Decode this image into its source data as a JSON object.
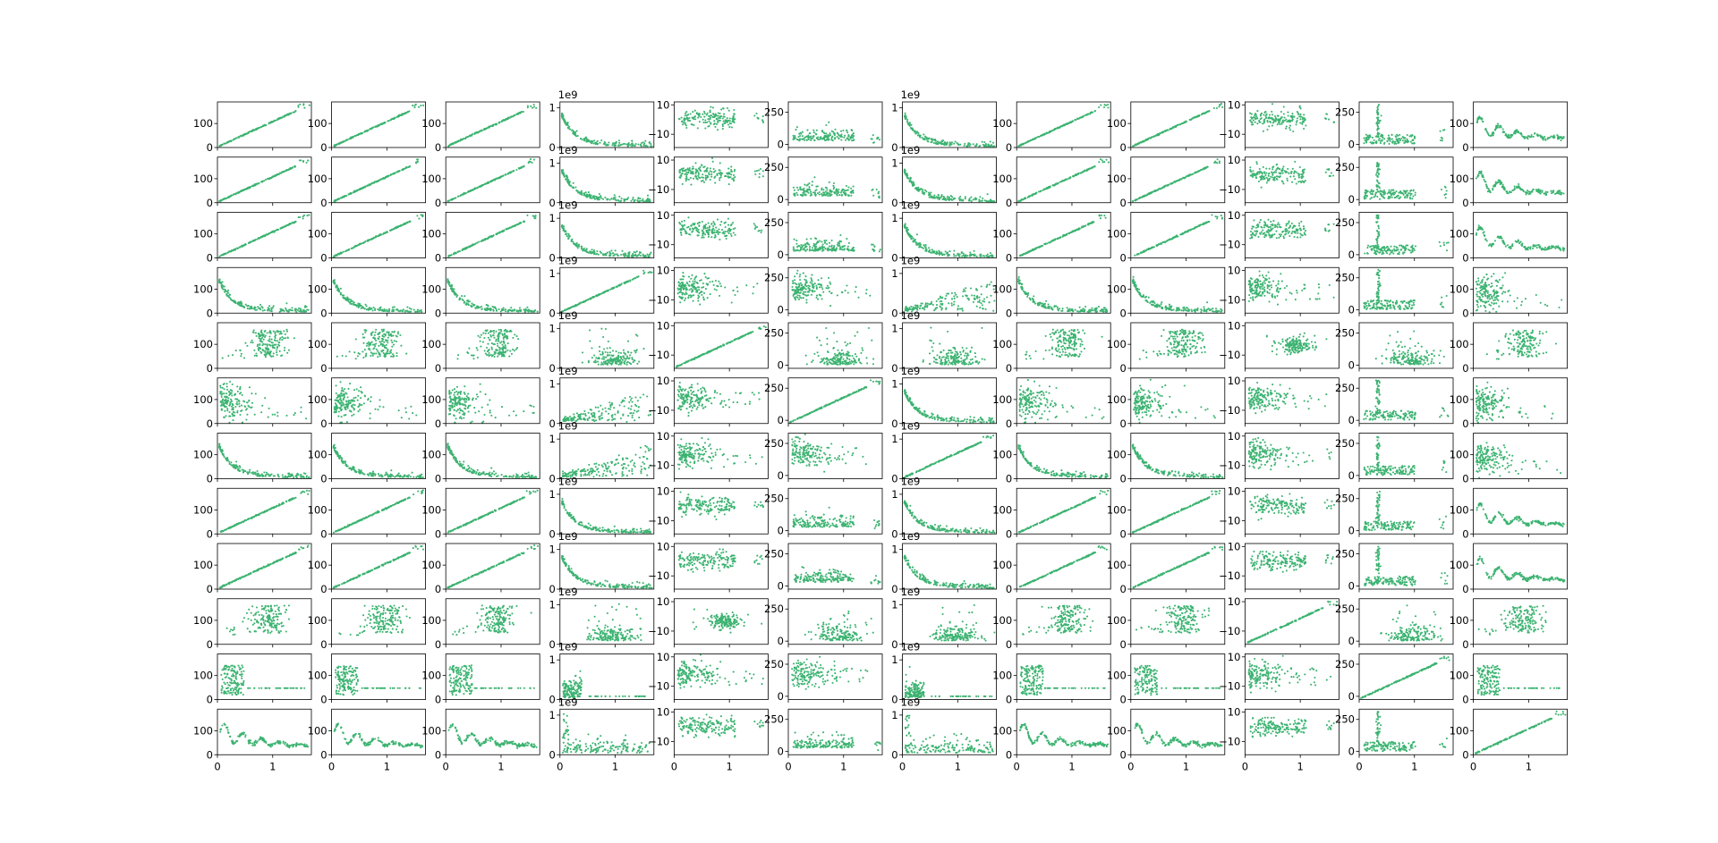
{
  "figure": {
    "kind": "scatter-matrix",
    "rows": 12,
    "cols": 12,
    "marker_color": "#3cb371",
    "tick_color": "#000000"
  },
  "chart_data": {
    "type": "scatter",
    "title": "",
    "xlabel": "",
    "ylabel": "",
    "grid": false,
    "legend": "none",
    "x_axis": {
      "range": [
        0,
        1.7
      ],
      "tick_labels": [
        "0",
        "1"
      ]
    },
    "y_axes_by_column": [
      {
        "range": [
          0,
          190
        ],
        "tick_labels": [
          "0",
          "100"
        ],
        "offset_text": ""
      },
      {
        "range": [
          0,
          190
        ],
        "tick_labels": [
          "0",
          "100"
        ],
        "offset_text": ""
      },
      {
        "range": [
          0,
          190
        ],
        "tick_labels": [
          "0",
          "100"
        ],
        "offset_text": ""
      },
      {
        "range": [
          0,
          1.15
        ],
        "tick_labels": [
          "0",
          "1"
        ],
        "offset_text": "1e9"
      },
      {
        "range": [
          -19,
          12
        ],
        "tick_labels": [
          "−10",
          "10"
        ],
        "offset_text": ""
      },
      {
        "range": [
          -25,
          330
        ],
        "tick_labels": [
          "0",
          "250"
        ],
        "offset_text": ""
      },
      {
        "range": [
          0,
          1.15
        ],
        "tick_labels": [
          "0",
          "1"
        ],
        "offset_text": "1e9"
      },
      {
        "range": [
          0,
          190
        ],
        "tick_labels": [
          "0",
          "100"
        ],
        "offset_text": ""
      },
      {
        "range": [
          0,
          190
        ],
        "tick_labels": [
          "0",
          "100"
        ],
        "offset_text": ""
      },
      {
        "range": [
          -19,
          12
        ],
        "tick_labels": [
          "−10",
          "10"
        ],
        "offset_text": ""
      },
      {
        "range": [
          -25,
          330
        ],
        "tick_labels": [
          "0",
          "250"
        ],
        "offset_text": ""
      },
      {
        "range": [
          0,
          190
        ],
        "tick_labels": [
          "0",
          "100"
        ],
        "offset_text": ""
      }
    ],
    "panel_patterns": [
      [
        "diag",
        "diag",
        "diag",
        "decay",
        "cloud-high",
        "cloud-low",
        "decay",
        "diag",
        "diag",
        "cloud-high",
        "vstrip",
        "wave"
      ],
      [
        "diag",
        "diag",
        "diag",
        "decay",
        "cloud-high",
        "cloud-low",
        "decay",
        "diag",
        "diag",
        "cloud-high",
        "vstrip",
        "wave"
      ],
      [
        "diag",
        "diag",
        "diag",
        "decay",
        "cloud-high",
        "cloud-low",
        "decay",
        "diag",
        "diag",
        "cloud-high",
        "vstrip",
        "wave"
      ],
      [
        "decay",
        "decay",
        "decay",
        "diag",
        "cloud-left",
        "cloud-left",
        "fan",
        "decay",
        "decay",
        "cloud-left",
        "vstrip",
        "blob-left"
      ],
      [
        "cloud-right",
        "cloud-right",
        "cloud-right",
        "cloud-right-low",
        "diag",
        "cloud-right-low",
        "cloud-right-low",
        "cloud-right",
        "cloud-right",
        "cloud-mid",
        "cloud-right-low",
        "cloud-right"
      ],
      [
        "blob-left",
        "blob-left",
        "blob-left",
        "fan",
        "cloud-left",
        "diag",
        "decay",
        "blob-left",
        "blob-left",
        "cloud-left",
        "vstrip",
        "blob-left"
      ],
      [
        "decay",
        "decay",
        "decay",
        "fan",
        "cloud-left",
        "cloud-left",
        "diag",
        "decay",
        "decay",
        "cloud-left",
        "vstrip",
        "blob-left"
      ],
      [
        "diag",
        "diag",
        "diag",
        "decay",
        "cloud-high",
        "cloud-low",
        "decay",
        "diag",
        "diag",
        "cloud-high",
        "vstrip",
        "wave"
      ],
      [
        "diag",
        "diag",
        "diag",
        "decay",
        "cloud-high",
        "cloud-low",
        "decay",
        "diag",
        "diag",
        "cloud-high",
        "vstrip",
        "wave"
      ],
      [
        "cloud-right",
        "cloud-right",
        "cloud-right",
        "cloud-right-low",
        "cloud-mid",
        "cloud-right-low",
        "cloud-right-low",
        "cloud-right",
        "cloud-right",
        "diag",
        "cloud-right-low",
        "cloud-right"
      ],
      [
        "block-left",
        "block-left",
        "block-left",
        "block-left-low",
        "cloud-left",
        "cloud-left",
        "block-left-low",
        "block-left",
        "block-left",
        "cloud-left",
        "diag",
        "block-left"
      ],
      [
        "wave",
        "wave",
        "wave",
        "scatter-low",
        "cloud-high",
        "cloud-low",
        "scatter-low",
        "wave",
        "wave",
        "cloud-high",
        "vstrip",
        "diag"
      ]
    ],
    "points_per_panel": 170
  }
}
